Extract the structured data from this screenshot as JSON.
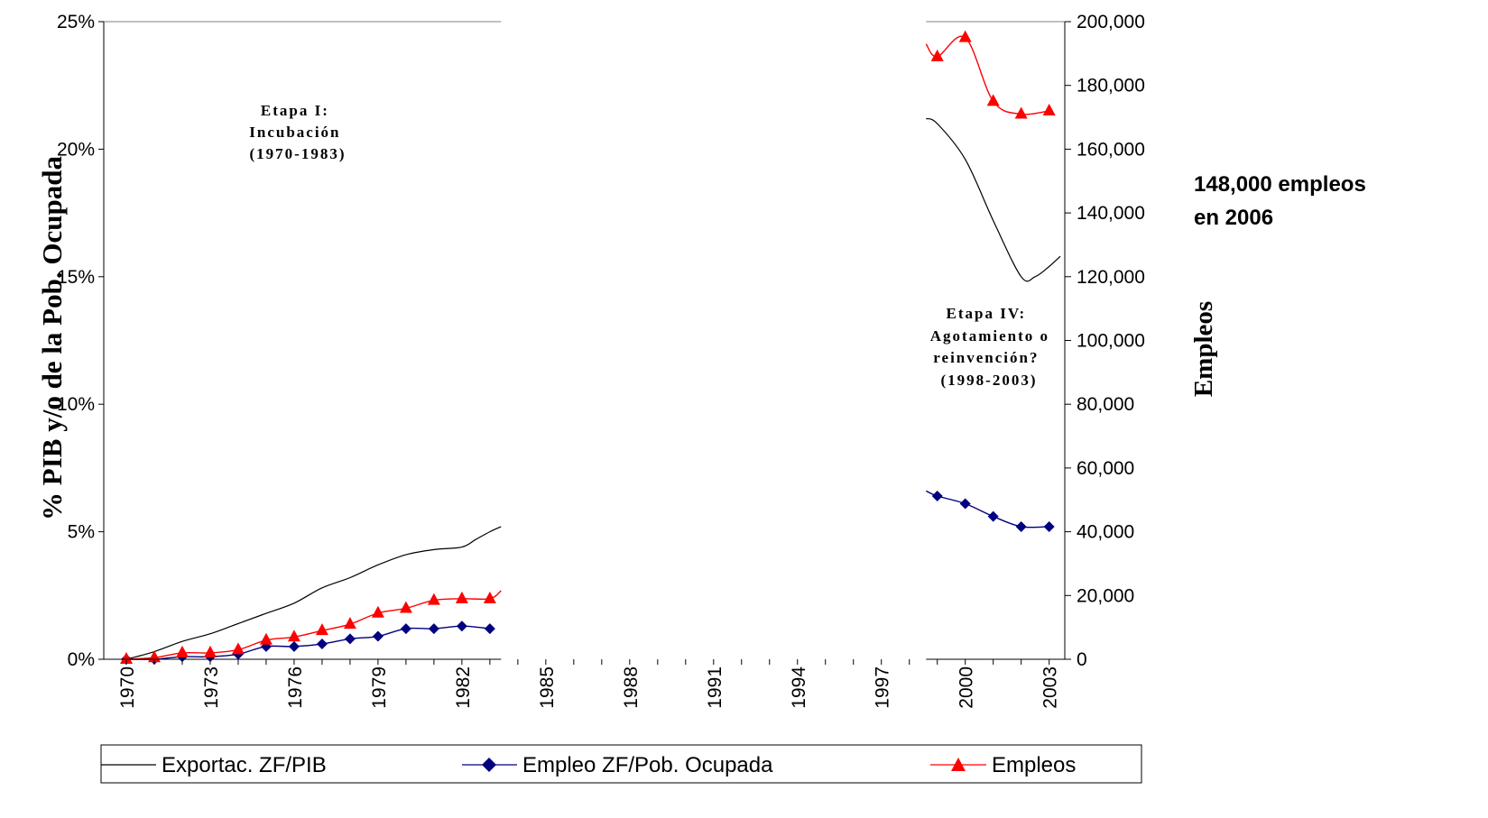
{
  "chart_data": {
    "type": "line",
    "title": "",
    "ylabel_left": "% PIB y/o de la Pob. Ocupada",
    "ylabel_right": "Empleos",
    "ylim_left": [
      0,
      0.25
    ],
    "ylim_right": [
      0,
      200000
    ],
    "left_ticks": [
      "0%",
      "5%",
      "10%",
      "15%",
      "20%",
      "25%"
    ],
    "right_ticks": [
      "0",
      "20,000",
      "40,000",
      "60,000",
      "80,000",
      "100,000",
      "120,000",
      "140,000",
      "160,000",
      "180,000",
      "200,000"
    ],
    "x_tick_labels": [
      "1970",
      "1973",
      "1976",
      "1979",
      "1982",
      "1985",
      "1988",
      "1991",
      "1994",
      "1997",
      "2000",
      "2003"
    ],
    "x_range": [
      1970,
      2003
    ],
    "visible_segments": [
      [
        1970,
        1983.4
      ],
      [
        1998.6,
        2003.4
      ]
    ],
    "series": [
      {
        "name": "Exportac. ZF/PIB",
        "axis": "left",
        "color": "#000000",
        "marker": "none",
        "x": [
          1970,
          1971,
          1972,
          1973,
          1974,
          1975,
          1976,
          1977,
          1978,
          1979,
          1980,
          1981,
          1982,
          1982.5,
          1983,
          1983.4,
          1998.6,
          1999,
          2000,
          2001,
          2002,
          2002.5,
          2003,
          2003.4
        ],
        "values": [
          0.0,
          0.003,
          0.007,
          0.01,
          0.014,
          0.018,
          0.022,
          0.028,
          0.032,
          0.037,
          0.041,
          0.043,
          0.044,
          0.047,
          0.05,
          0.052,
          0.212,
          0.21,
          0.196,
          0.172,
          0.15,
          0.15,
          0.154,
          0.158
        ]
      },
      {
        "name": "Empleo ZF/Pob. Ocupada",
        "axis": "left",
        "color": "#000080",
        "marker": "diamond",
        "x": [
          1970,
          1971,
          1972,
          1973,
          1974,
          1975,
          1976,
          1977,
          1978,
          1979,
          1980,
          1981,
          1982,
          1983,
          1998.6,
          1999,
          2000,
          2001,
          2002,
          2003
        ],
        "marker_x": [
          1970,
          1971,
          1972,
          1973,
          1974,
          1975,
          1976,
          1977,
          1978,
          1979,
          1980,
          1981,
          1982,
          1983,
          1999,
          2000,
          2001,
          2002,
          2003
        ],
        "values": [
          0.0,
          0.0,
          0.001,
          0.001,
          0.002,
          0.005,
          0.005,
          0.006,
          0.008,
          0.009,
          0.012,
          0.012,
          0.013,
          0.012,
          0.066,
          0.064,
          0.061,
          0.056,
          0.052,
          0.052
        ]
      },
      {
        "name": "Empleos",
        "axis": "right",
        "color": "#ff0000",
        "marker": "triangle",
        "x": [
          1970,
          1971,
          1972,
          1973,
          1974,
          1975,
          1976,
          1977,
          1978,
          1979,
          1980,
          1981,
          1982,
          1983,
          1983.4,
          1998.6,
          1999,
          2000,
          2001,
          2002,
          2003
        ],
        "marker_x": [
          1970,
          1971,
          1972,
          1973,
          1974,
          1975,
          1976,
          1977,
          1978,
          1979,
          1980,
          1981,
          1982,
          1983,
          1999,
          2000,
          2001,
          2002,
          2003
        ],
        "values": [
          0,
          500,
          2000,
          2000,
          3000,
          6000,
          7000,
          9000,
          11000,
          14500,
          16000,
          18500,
          19000,
          19000,
          21500,
          193000,
          189000,
          195000,
          175000,
          171000,
          172000
        ]
      }
    ],
    "legend_position": "bottom",
    "grid": false
  },
  "annotations": {
    "stage1": [
      "Etapa I:",
      "Incubación",
      "(1970-1983)"
    ],
    "stage4": [
      "Etapa IV:",
      "Agotamiento o",
      "reinvención?",
      "(1998-2003)"
    ],
    "note": [
      "148,000 empleos",
      "en 2006"
    ]
  }
}
